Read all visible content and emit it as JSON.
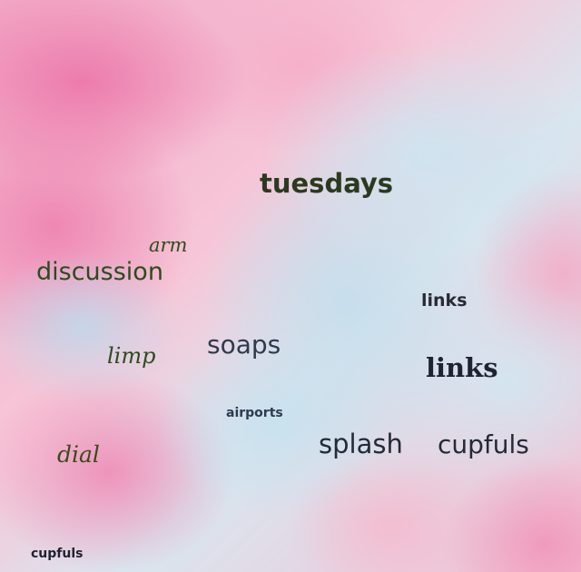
{
  "words": [
    {
      "text": "tuesdays",
      "color": "#2b3a1e"
    },
    {
      "text": "arm",
      "color": "#2f4a1c"
    },
    {
      "text": "discussion",
      "color": "#2f4a1c"
    },
    {
      "text": "links",
      "color": "#2a2a35"
    },
    {
      "text": "limp",
      "color": "#2f4a1c"
    },
    {
      "text": "soaps",
      "color": "#2e3a4e"
    },
    {
      "text": "links",
      "color": "#1f2230"
    },
    {
      "text": "airports",
      "color": "#2e3a4e"
    },
    {
      "text": "splash",
      "color": "#232a38"
    },
    {
      "text": "cupfuls",
      "color": "#232a38"
    },
    {
      "text": "dial",
      "color": "#3a4a1a"
    },
    {
      "text": "cupfuls",
      "color": "#1f2230"
    }
  ]
}
